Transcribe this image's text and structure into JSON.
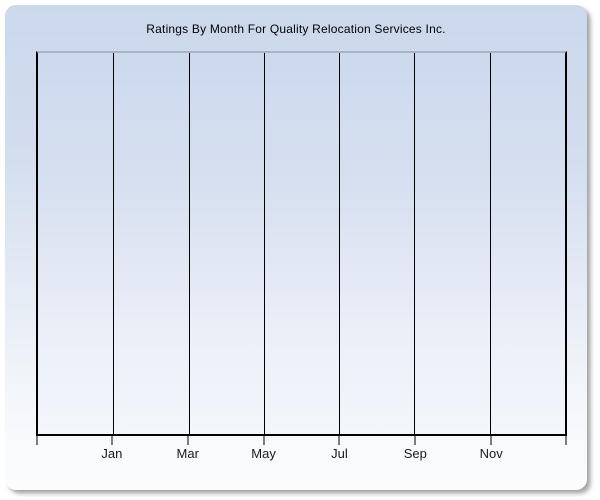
{
  "window": {
    "title": "Ratings By Month For Quality Relocation Services Inc."
  },
  "chart_data": {
    "type": "line",
    "title": "Ratings By Month For Quality Relocation Services Inc.",
    "categories": [
      "Jan",
      "Mar",
      "May",
      "Jul",
      "Sep",
      "Nov"
    ],
    "series": [],
    "xlabel": "",
    "ylabel": "",
    "y_tick_labels": [],
    "layout": {
      "plot_columns": 7,
      "grid_vertical": true,
      "grid_horizontal": false,
      "legend": "none",
      "tick_labels_centered_on_gridlines": true
    },
    "note": "Plot area is empty - no data points or series are rendered",
    "colors": {
      "panel_gradient_top": "#cbd8ec",
      "panel_gradient_bottom": "#fbfcfe",
      "plot_gradient_top": "#ccd9ee",
      "plot_gradient_bottom": "#f3f6fb",
      "gridline": "#000000",
      "plot_top_border": "#a9b3c5",
      "axis_line": "#000000",
      "title_text": "#000000",
      "axis_text": "#1a1a1a"
    }
  }
}
